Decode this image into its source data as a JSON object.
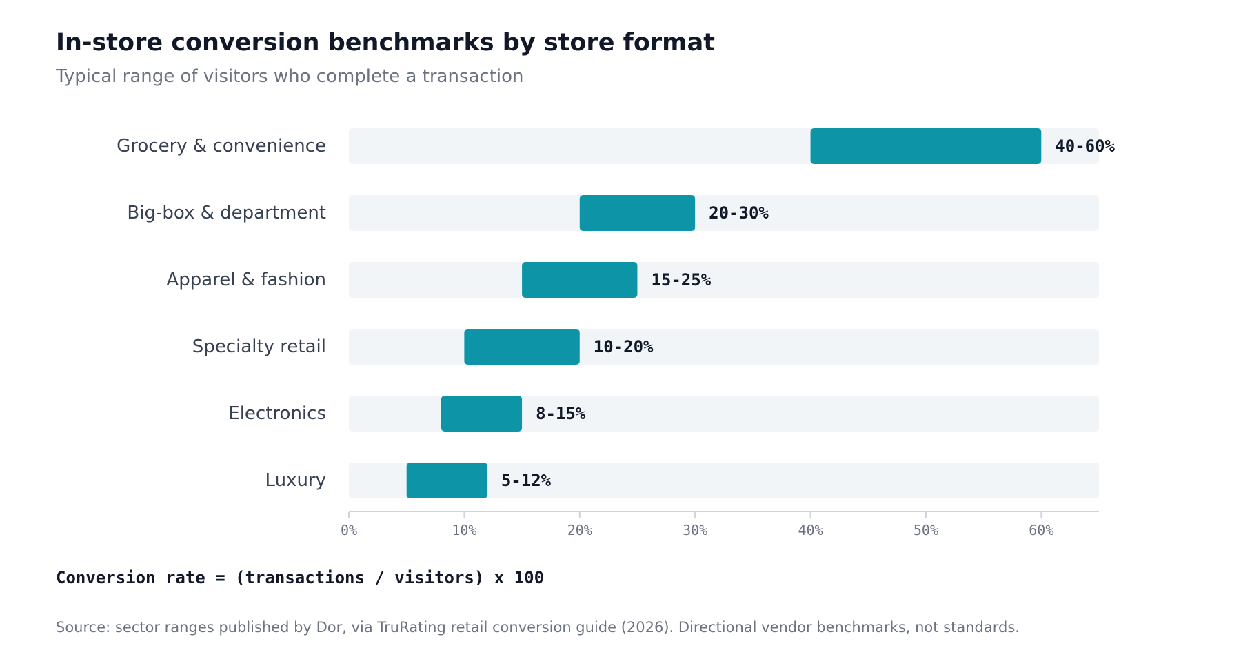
{
  "chart_data": {
    "type": "bar",
    "subtype": "floating-range",
    "orientation": "horizontal",
    "title": "In-store conversion benchmarks by store format",
    "subtitle": "Typical range of visitors who complete a transaction",
    "categories": [
      "Grocery & convenience",
      "Big-box & department",
      "Apparel & fashion",
      "Specialty retail",
      "Electronics",
      "Luxury"
    ],
    "ranges": [
      [
        40,
        60
      ],
      [
        20,
        30
      ],
      [
        15,
        25
      ],
      [
        10,
        20
      ],
      [
        8,
        15
      ],
      [
        5,
        12
      ]
    ],
    "range_labels": [
      "40-60%",
      "20-30%",
      "15-25%",
      "10-20%",
      "8-15%",
      "5-12%"
    ],
    "xlim": [
      0,
      65
    ],
    "xticks": [
      0,
      10,
      20,
      30,
      40,
      50,
      60
    ],
    "xtick_labels": [
      "0%",
      "10%",
      "20%",
      "30%",
      "40%",
      "50%",
      "60%"
    ],
    "grid": false,
    "colors": {
      "bar": "#0e94a7",
      "track": "#f1f5f8",
      "axis": "#cbd5e1"
    }
  },
  "formula": "Conversion rate = (transactions / visitors) x 100",
  "source": "Source: sector ranges published by Dor, via TruRating retail conversion guide (2026). Directional vendor benchmarks, not standards."
}
